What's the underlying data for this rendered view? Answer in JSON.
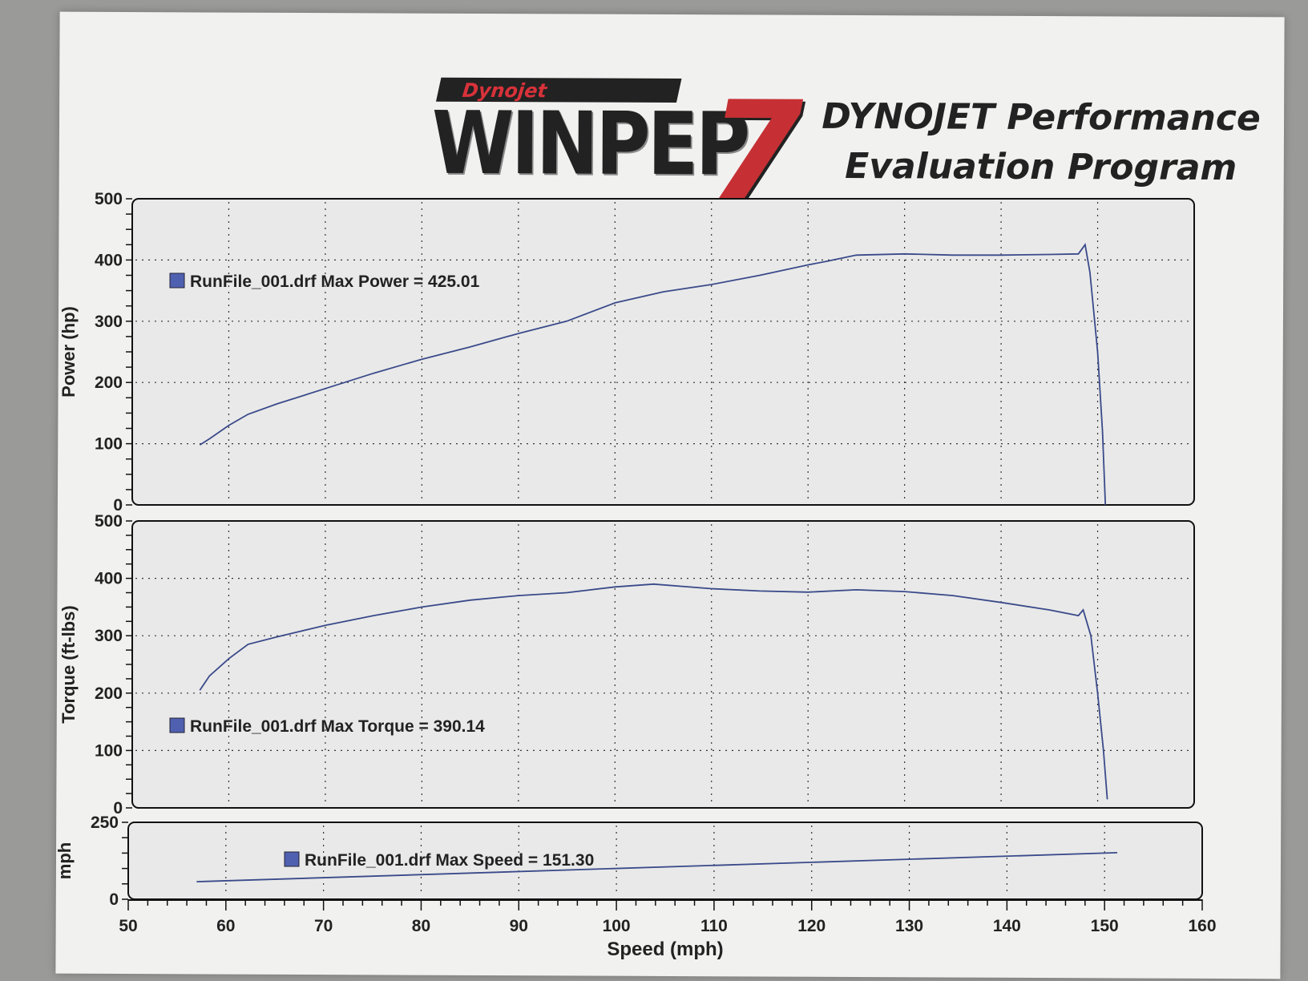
{
  "header": {
    "logo_brand": "Dynojet",
    "logo_product": "WINPEP",
    "logo_version": "7",
    "title_line1": "DYNOJET Performance",
    "title_line2": "Evaluation Program"
  },
  "colors": {
    "curve": "#3a4a8a",
    "legend_marker": "#5060b0",
    "panel_bg": "#e9e9e9",
    "grid": "#333333"
  },
  "chart_data": [
    {
      "type": "line",
      "ylabel": "Power (hp)",
      "ylim": [
        0,
        500
      ],
      "yticks": [
        0,
        100,
        200,
        300,
        400,
        500
      ],
      "xlim": [
        50,
        160
      ],
      "legend": "RunFile_001.drf Max Power = 425.01",
      "legend_placement": "upper-left",
      "grid": true,
      "series": [
        {
          "x": [
            57,
            58,
            60,
            62,
            65,
            70,
            75,
            80,
            85,
            90,
            95,
            100,
            105,
            110,
            115,
            120,
            122,
            125,
            130,
            135,
            140,
            145,
            148,
            148.7,
            149.2,
            150,
            150.5,
            150.8
          ],
          "y": [
            98,
            108,
            130,
            148,
            165,
            190,
            215,
            238,
            258,
            280,
            300,
            330,
            348,
            360,
            375,
            392,
            398,
            408,
            410,
            408,
            408,
            409,
            410,
            425,
            380,
            250,
            120,
            0
          ]
        }
      ]
    },
    {
      "type": "line",
      "ylabel": "Torque (ft-lbs)",
      "ylim": [
        0,
        500
      ],
      "yticks": [
        0,
        100,
        200,
        300,
        400,
        500
      ],
      "xlim": [
        50,
        160
      ],
      "legend": "RunFile_001.drf Max Torque = 390.14",
      "legend_placement": "lower-left",
      "grid": true,
      "series": [
        {
          "x": [
            57,
            58,
            60,
            62,
            65,
            70,
            75,
            80,
            85,
            90,
            95,
            100,
            104,
            110,
            115,
            120,
            125,
            130,
            135,
            140,
            145,
            148,
            148.5,
            149.3,
            150,
            150.6,
            151
          ],
          "y": [
            205,
            230,
            260,
            285,
            298,
            318,
            335,
            350,
            362,
            370,
            375,
            385,
            390,
            382,
            378,
            376,
            380,
            377,
            370,
            358,
            345,
            335,
            345,
            300,
            200,
            100,
            15
          ]
        }
      ]
    },
    {
      "type": "line",
      "ylabel": "mph",
      "ylim": [
        0,
        250
      ],
      "yticks": [
        0,
        250
      ],
      "xlim": [
        50,
        160
      ],
      "xlabel": "Speed (mph)",
      "xticks": [
        50,
        60,
        70,
        80,
        90,
        100,
        110,
        120,
        130,
        140,
        150,
        160
      ],
      "legend": "RunFile_001.drf Max Speed = 151.30",
      "legend_placement": "center",
      "grid": true,
      "series": [
        {
          "x": [
            57,
            151.3
          ],
          "y": [
            57,
            151.3
          ]
        }
      ]
    }
  ]
}
